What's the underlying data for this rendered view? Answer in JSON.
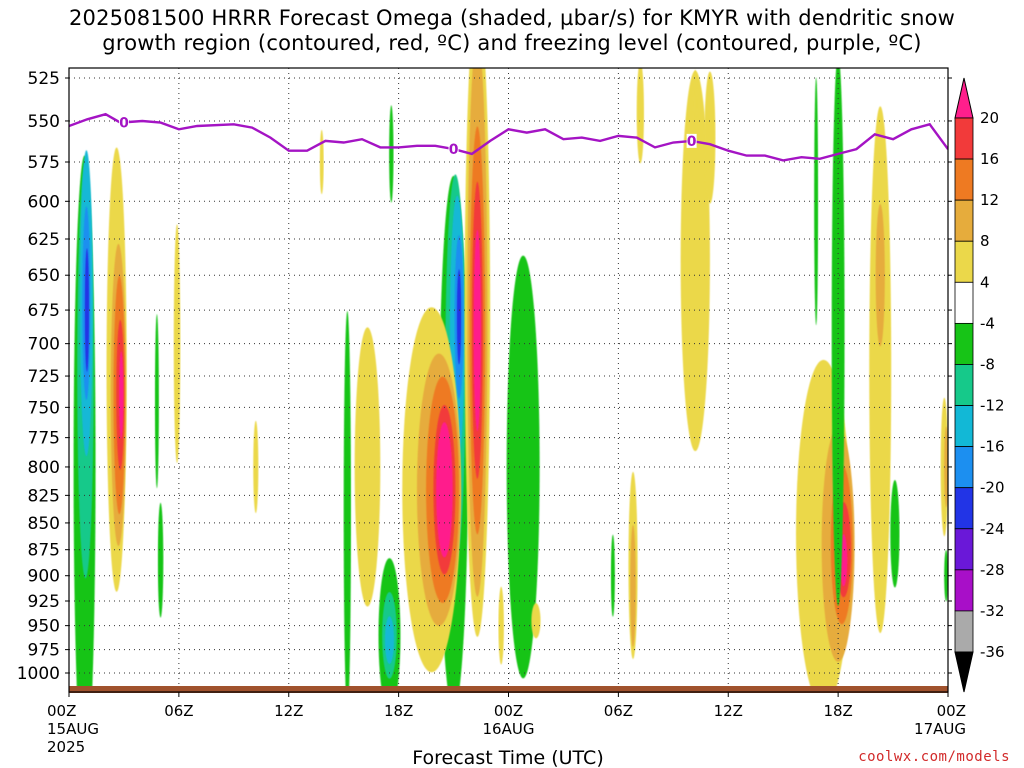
{
  "title": {
    "line1": "2025081500 HRRR Forecast Omega (shaded, µbar/s) for KMYR with dendritic snow",
    "line2": "growth region (contoured, red, ºC) and freezing level (contoured, purple, ºC)"
  },
  "credit": "coolwx.com/models",
  "chart_data": {
    "type": "heatmap",
    "xlabel": "Forecast Time (UTC)",
    "ylabel": "",
    "x_range_hours": [
      0,
      48
    ],
    "y_range_hPa": [
      1000,
      525
    ],
    "y_scale": "log-pressure (inverted)",
    "grid": true,
    "x_ticks": [
      {
        "hour": 0,
        "label": "00Z",
        "sub": "15AUG",
        "sub2": "2025"
      },
      {
        "hour": 6,
        "label": "06Z"
      },
      {
        "hour": 12,
        "label": "12Z"
      },
      {
        "hour": 18,
        "label": "18Z"
      },
      {
        "hour": 24,
        "label": "00Z",
        "sub": "16AUG"
      },
      {
        "hour": 30,
        "label": "06Z"
      },
      {
        "hour": 36,
        "label": "12Z"
      },
      {
        "hour": 42,
        "label": "18Z"
      },
      {
        "hour": 48,
        "label": "00Z",
        "sub": "17AUG"
      }
    ],
    "y_ticks": [
      525,
      550,
      575,
      600,
      625,
      650,
      675,
      700,
      725,
      750,
      775,
      800,
      825,
      850,
      875,
      900,
      925,
      950,
      975,
      1000
    ],
    "colorbar": {
      "labels": [
        "20",
        "16",
        "12",
        "8",
        "4",
        "-4",
        "-8",
        "-12",
        "-16",
        "-20",
        "-24",
        "-28",
        "-32",
        "-36"
      ],
      "bins": [
        {
          "range": ">20",
          "color": "#ff1f8c"
        },
        {
          "range": "16 to 20",
          "color": "#f23a3a"
        },
        {
          "range": "12 to 16",
          "color": "#ee7a22"
        },
        {
          "range": "8 to 12",
          "color": "#e6ac3c"
        },
        {
          "range": "4 to 8",
          "color": "#ebd84a"
        },
        {
          "range": "-4 to 4",
          "color": "#ffffff"
        },
        {
          "range": "-8 to -4",
          "color": "#17c417"
        },
        {
          "range": "-12 to -8",
          "color": "#16c98a"
        },
        {
          "range": "-16 to -12",
          "color": "#12b8d6"
        },
        {
          "range": "-20 to -16",
          "color": "#1c8ff0"
        },
        {
          "range": "-24 to -20",
          "color": "#2234e6"
        },
        {
          "range": "-28 to -24",
          "color": "#6a18d8"
        },
        {
          "range": "-32 to -28",
          "color": "#a80fc8"
        },
        {
          "range": "-36 to -32",
          "color": "#aaaaaa"
        },
        {
          "range": "<-36",
          "color": "#000000"
        }
      ]
    },
    "freezing_level": {
      "color": "#a414c4",
      "label": "0",
      "points": [
        {
          "hour": 0,
          "hPa": 553
        },
        {
          "hour": 1,
          "hPa": 549
        },
        {
          "hour": 2,
          "hPa": 546
        },
        {
          "hour": 2.8,
          "hPa": 551
        },
        {
          "hour": 4,
          "hPa": 550
        },
        {
          "hour": 5,
          "hPa": 551
        },
        {
          "hour": 6,
          "hPa": 555
        },
        {
          "hour": 7,
          "hPa": 553
        },
        {
          "hour": 9,
          "hPa": 552
        },
        {
          "hour": 10,
          "hPa": 554
        },
        {
          "hour": 11,
          "hPa": 560
        },
        {
          "hour": 12,
          "hPa": 568
        },
        {
          "hour": 13,
          "hPa": 568
        },
        {
          "hour": 14,
          "hPa": 562
        },
        {
          "hour": 15,
          "hPa": 563
        },
        {
          "hour": 16,
          "hPa": 561
        },
        {
          "hour": 17,
          "hPa": 566
        },
        {
          "hour": 18,
          "hPa": 566
        },
        {
          "hour": 19,
          "hPa": 565
        },
        {
          "hour": 20,
          "hPa": 565
        },
        {
          "hour": 21,
          "hPa": 567
        },
        {
          "hour": 22,
          "hPa": 570
        },
        {
          "hour": 23,
          "hPa": 562
        },
        {
          "hour": 24,
          "hPa": 555
        },
        {
          "hour": 25,
          "hPa": 557
        },
        {
          "hour": 26,
          "hPa": 555
        },
        {
          "hour": 27,
          "hPa": 561
        },
        {
          "hour": 28,
          "hPa": 560
        },
        {
          "hour": 29,
          "hPa": 562
        },
        {
          "hour": 30,
          "hPa": 559
        },
        {
          "hour": 31,
          "hPa": 560
        },
        {
          "hour": 32,
          "hPa": 566
        },
        {
          "hour": 33,
          "hPa": 563
        },
        {
          "hour": 34,
          "hPa": 562
        },
        {
          "hour": 35,
          "hPa": 564
        },
        {
          "hour": 36,
          "hPa": 568
        },
        {
          "hour": 37,
          "hPa": 571
        },
        {
          "hour": 38,
          "hPa": 571
        },
        {
          "hour": 39,
          "hPa": 574
        },
        {
          "hour": 40,
          "hPa": 572
        },
        {
          "hour": 41,
          "hPa": 573
        },
        {
          "hour": 42,
          "hPa": 570
        },
        {
          "hour": 43,
          "hPa": 567
        },
        {
          "hour": 44,
          "hPa": 558
        },
        {
          "hour": 45,
          "hPa": 561
        },
        {
          "hour": 46,
          "hPa": 555
        },
        {
          "hour": 47,
          "hPa": 552
        },
        {
          "hour": 48,
          "hPa": 567
        }
      ],
      "label_hours": [
        3,
        21,
        34
      ]
    },
    "omega_cells": [
      {
        "level": "-8",
        "h": 0.85,
        "p": 800,
        "wh": 0.6,
        "wp": 260
      },
      {
        "level": "-12",
        "h": 0.9,
        "p": 720,
        "wh": 0.45,
        "wp": 160
      },
      {
        "level": "-16",
        "h": 0.95,
        "p": 670,
        "wh": 0.35,
        "wp": 110
      },
      {
        "level": "-20",
        "h": 0.95,
        "p": 670,
        "wh": 0.22,
        "wp": 70
      },
      {
        "level": "-24",
        "h": 0.98,
        "p": 675,
        "wh": 0.12,
        "wp": 45
      },
      {
        "level": "4",
        "h": 2.6,
        "p": 720,
        "wh": 0.55,
        "wp": 170
      },
      {
        "level": "8",
        "h": 2.7,
        "p": 740,
        "wh": 0.42,
        "wp": 120
      },
      {
        "level": "12",
        "h": 2.75,
        "p": 740,
        "wh": 0.32,
        "wp": 95
      },
      {
        "level": "16",
        "h": 2.8,
        "p": 740,
        "wh": 0.22,
        "wp": 60
      },
      {
        "level": "20",
        "h": 2.85,
        "p": 740,
        "wh": 0.12,
        "wp": 35
      },
      {
        "level": "-8",
        "h": 21.0,
        "p": 780,
        "wh": 0.8,
        "wp": 220
      },
      {
        "level": "-12",
        "h": 21.1,
        "p": 720,
        "wh": 0.55,
        "wp": 150
      },
      {
        "level": "-16",
        "h": 21.2,
        "p": 690,
        "wh": 0.4,
        "wp": 100
      },
      {
        "level": "-20",
        "h": 21.3,
        "p": 680,
        "wh": 0.25,
        "wp": 60
      },
      {
        "level": "-24",
        "h": 21.3,
        "p": 680,
        "wh": 0.12,
        "wp": 35
      },
      {
        "level": "4",
        "h": 19.8,
        "p": 820,
        "wh": 1.6,
        "wp": 160
      },
      {
        "level": "8",
        "h": 20.2,
        "p": 820,
        "wh": 1.2,
        "wp": 120
      },
      {
        "level": "12",
        "h": 20.4,
        "p": 820,
        "wh": 0.9,
        "wp": 100
      },
      {
        "level": "16",
        "h": 20.5,
        "p": 820,
        "wh": 0.6,
        "wp": 75
      },
      {
        "level": "20",
        "h": 20.5,
        "p": 820,
        "wh": 0.45,
        "wp": 60
      },
      {
        "level": "4",
        "h": 22.3,
        "p": 680,
        "wh": 0.7,
        "wp": 250
      },
      {
        "level": "8",
        "h": 22.3,
        "p": 680,
        "wh": 0.55,
        "wp": 200
      },
      {
        "level": "12",
        "h": 22.3,
        "p": 690,
        "wh": 0.42,
        "wp": 150
      },
      {
        "level": "16",
        "h": 22.3,
        "p": 690,
        "wh": 0.3,
        "wp": 110
      },
      {
        "level": "20",
        "h": 22.3,
        "p": 690,
        "wh": 0.2,
        "wp": 75
      },
      {
        "level": "-8",
        "h": 24.8,
        "p": 800,
        "wh": 0.9,
        "wp": 180
      },
      {
        "level": "-8",
        "h": 17.5,
        "p": 960,
        "wh": 0.6,
        "wp": 80
      },
      {
        "level": "-12",
        "h": 17.5,
        "p": 960,
        "wh": 0.4,
        "wp": 45
      },
      {
        "level": "-16",
        "h": 17.5,
        "p": 965,
        "wh": 0.25,
        "wp": 25
      },
      {
        "level": "-8",
        "h": 41.0,
        "p": 950,
        "wh": 0.9,
        "wp": 60
      },
      {
        "level": "-12",
        "h": 41.0,
        "p": 955,
        "wh": 0.6,
        "wp": 35
      },
      {
        "level": "4",
        "h": 41.2,
        "p": 860,
        "wh": 1.5,
        "wp": 160
      },
      {
        "level": "8",
        "h": 42.0,
        "p": 870,
        "wh": 0.9,
        "wp": 110
      },
      {
        "level": "12",
        "h": 42.2,
        "p": 870,
        "wh": 0.6,
        "wp": 75
      },
      {
        "level": "16",
        "h": 42.3,
        "p": 875,
        "wh": 0.4,
        "wp": 45
      },
      {
        "level": "20",
        "h": 42.3,
        "p": 885,
        "wh": 0.2,
        "wp": 25
      },
      {
        "level": "4",
        "h": 44.3,
        "p": 720,
        "wh": 0.6,
        "wp": 200
      },
      {
        "level": "8",
        "h": 44.3,
        "p": 650,
        "wh": 0.25,
        "wp": 50
      },
      {
        "level": "4",
        "h": 34.2,
        "p": 640,
        "wh": 0.8,
        "wp": 130
      },
      {
        "level": "4",
        "h": 30.8,
        "p": 890,
        "wh": 0.25,
        "wp": 90
      },
      {
        "level": "8",
        "h": 30.8,
        "p": 910,
        "wh": 0.15,
        "wp": 60
      },
      {
        "level": "4",
        "h": 5.9,
        "p": 700,
        "wh": 0.18,
        "wp": 90
      },
      {
        "level": "4",
        "h": 10.2,
        "p": 800,
        "wh": 0.14,
        "wp": 40
      },
      {
        "level": "4",
        "h": 31.2,
        "p": 545,
        "wh": 0.2,
        "wp": 30
      },
      {
        "level": "4",
        "h": 35.0,
        "p": 560,
        "wh": 0.3,
        "wp": 40
      },
      {
        "level": "4",
        "h": 16.3,
        "p": 800,
        "wh": 0.7,
        "wp": 120
      },
      {
        "level": "-8",
        "h": 4.8,
        "p": 745,
        "wh": 0.08,
        "wp": 70
      },
      {
        "level": "-8",
        "h": 5.0,
        "p": 885,
        "wh": 0.15,
        "wp": 55
      },
      {
        "level": "-8",
        "h": 15.2,
        "p": 840,
        "wh": 0.2,
        "wp": 180
      },
      {
        "level": "-8",
        "h": 17.6,
        "p": 570,
        "wh": 0.12,
        "wp": 30
      },
      {
        "level": "-8",
        "h": 42.0,
        "p": 690,
        "wh": 0.35,
        "wp": 200
      },
      {
        "level": "-8",
        "h": 40.8,
        "p": 600,
        "wh": 0.1,
        "wp": 80
      },
      {
        "level": "-8",
        "h": 29.7,
        "p": 900,
        "wh": 0.1,
        "wp": 40
      },
      {
        "level": "-8",
        "h": 45.1,
        "p": 860,
        "wh": 0.25,
        "wp": 50
      },
      {
        "level": "-8",
        "h": 47.9,
        "p": 900,
        "wh": 0.1,
        "wp": 25
      },
      {
        "level": "4",
        "h": 47.8,
        "p": 800,
        "wh": 0.2,
        "wp": 60
      },
      {
        "level": "8",
        "h": 47.9,
        "p": 800,
        "wh": 0.1,
        "wp": 35
      },
      {
        "level": "4",
        "h": 13.8,
        "p": 575,
        "wh": 0.1,
        "wp": 20
      },
      {
        "level": "4",
        "h": 34.2,
        "p": 540,
        "wh": 0.12,
        "wp": 20
      },
      {
        "level": "4",
        "h": 25.5,
        "p": 945,
        "wh": 0.25,
        "wp": 18
      },
      {
        "level": "4",
        "h": 23.6,
        "p": 950,
        "wh": 0.15,
        "wp": 40
      }
    ],
    "dendritic_snow_growth_region": "not present (no red contours)"
  }
}
